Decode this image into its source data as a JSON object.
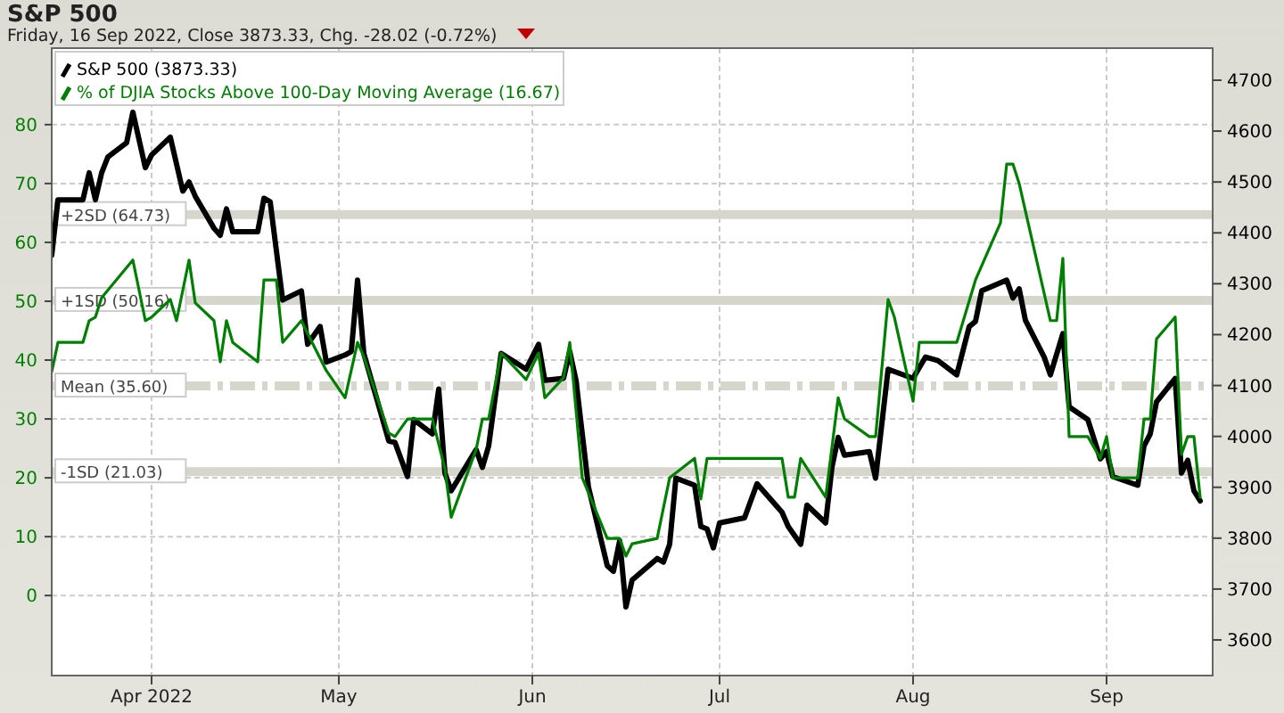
{
  "chart_data": {
    "type": "line",
    "title": "S&P 500",
    "subtitle": "Friday, 16 Sep 2022, Close 3873.33, Chg. -28.02 (-0.72%)",
    "xlim": [
      "2022-03-16",
      "2022-09-18"
    ],
    "xticks": [
      {
        "value": "2022-04-01",
        "label": "Apr 2022"
      },
      {
        "value": "2022-05-01",
        "label": "May"
      },
      {
        "value": "2022-06-01",
        "label": "Jun"
      },
      {
        "value": "2022-07-01",
        "label": "Jul"
      },
      {
        "value": "2022-08-01",
        "label": "Aug"
      },
      {
        "value": "2022-09-01",
        "label": "Sep"
      }
    ],
    "ylim": [
      -13.6,
      93
    ],
    "yticks": [
      0,
      10,
      20,
      30,
      40,
      50,
      60,
      70,
      80
    ],
    "y2lim": [
      3530,
      4763
    ],
    "y2ticks": [
      3600,
      3700,
      3800,
      3900,
      4000,
      4100,
      4200,
      4300,
      4400,
      4500,
      4600,
      4700
    ],
    "grid": true,
    "legend": "top left",
    "ref_lines": [
      {
        "axis": "y",
        "value": 64.73,
        "label": "+2SD (64.73)",
        "color": "#d6d6cc",
        "line_style": "solid"
      },
      {
        "axis": "y",
        "value": 50.16,
        "label": "+1SD (50.16)",
        "color": "#d6d6cc",
        "line_style": "solid"
      },
      {
        "axis": "y",
        "value": 35.6,
        "label": "Mean (35.60)",
        "color": "#d6d6cc",
        "line_style": "dashed"
      },
      {
        "axis": "y",
        "value": 21.03,
        "label": "-1SD (21.03)",
        "color": "#d6d6cc",
        "line_style": "solid"
      }
    ],
    "series": [
      {
        "name": "S&P 500 (3873.33)",
        "color": "#000000",
        "axis": "y2",
        "x": [
          "2022-03-16",
          "2022-03-17",
          "2022-03-21",
          "2022-03-22",
          "2022-03-23",
          "2022-03-24",
          "2022-03-25",
          "2022-03-28",
          "2022-03-29",
          "2022-03-31",
          "2022-04-01",
          "2022-04-04",
          "2022-04-06",
          "2022-04-07",
          "2022-04-08",
          "2022-04-11",
          "2022-04-12",
          "2022-04-13",
          "2022-04-14",
          "2022-04-18",
          "2022-04-19",
          "2022-04-20",
          "2022-04-22",
          "2022-04-25",
          "2022-04-26",
          "2022-04-28",
          "2022-04-29",
          "2022-05-02",
          "2022-05-03",
          "2022-05-04",
          "2022-05-05",
          "2022-05-09",
          "2022-05-10",
          "2022-05-12",
          "2022-05-13",
          "2022-05-16",
          "2022-05-17",
          "2022-05-18",
          "2022-05-19",
          "2022-05-23",
          "2022-05-24",
          "2022-05-25",
          "2022-05-27",
          "2022-05-31",
          "2022-06-02",
          "2022-06-03",
          "2022-06-06",
          "2022-06-07",
          "2022-06-08",
          "2022-06-10",
          "2022-06-13",
          "2022-06-14",
          "2022-06-15",
          "2022-06-16",
          "2022-06-17",
          "2022-06-21",
          "2022-06-22",
          "2022-06-23",
          "2022-06-24",
          "2022-06-27",
          "2022-06-28",
          "2022-06-29",
          "2022-06-30",
          "2022-07-01",
          "2022-07-05",
          "2022-07-07",
          "2022-07-11",
          "2022-07-12",
          "2022-07-14",
          "2022-07-15",
          "2022-07-18",
          "2022-07-19",
          "2022-07-20",
          "2022-07-21",
          "2022-07-25",
          "2022-07-26",
          "2022-07-28",
          "2022-08-01",
          "2022-08-03",
          "2022-08-05",
          "2022-08-08",
          "2022-08-10",
          "2022-08-11",
          "2022-08-12",
          "2022-08-16",
          "2022-08-17",
          "2022-08-18",
          "2022-08-19",
          "2022-08-22",
          "2022-08-23",
          "2022-08-25",
          "2022-08-26",
          "2022-08-29",
          "2022-08-31",
          "2022-09-01",
          "2022-09-02",
          "2022-09-06",
          "2022-09-07",
          "2022-09-08",
          "2022-09-09",
          "2022-09-12",
          "2022-09-13",
          "2022-09-14",
          "2022-09-15",
          "2022-09-16"
        ],
        "values": [
          4356,
          4465,
          4465,
          4518,
          4465,
          4518,
          4549,
          4577,
          4637,
          4528,
          4553,
          4588,
          4482,
          4500,
          4472,
          4409,
          4395,
          4447,
          4402,
          4402,
          4468,
          4461,
          4268,
          4286,
          4181,
          4216,
          4146,
          4160,
          4167,
          4307,
          4163,
          3991,
          3988,
          3921,
          4033,
          4005,
          4093,
          3928,
          3893,
          3974,
          3939,
          3981,
          4163,
          4132,
          4181,
          4110,
          4114,
          4167,
          4110,
          3900,
          3746,
          3735,
          3795,
          3665,
          3718,
          3760,
          3753,
          3788,
          3918,
          3904,
          3823,
          3818,
          3781,
          3830,
          3840,
          3907,
          3851,
          3823,
          3788,
          3865,
          3830,
          3939,
          3998,
          3963,
          3970,
          3918,
          4132,
          4114,
          4156,
          4149,
          4121,
          4216,
          4226,
          4286,
          4307,
          4272,
          4290,
          4228,
          4156,
          4121,
          4202,
          4058,
          4033,
          3956,
          3970,
          3921,
          3904,
          3981,
          4005,
          4068,
          4114,
          3928,
          3953,
          3893,
          3873.33
        ]
      },
      {
        "name": "% of DJIA Stocks Above 100-Day Moving Average (16.67)",
        "color": "#008000",
        "axis": "y",
        "x": [
          "2022-03-16",
          "2022-03-17",
          "2022-03-21",
          "2022-03-22",
          "2022-03-23",
          "2022-03-24",
          "2022-03-29",
          "2022-03-31",
          "2022-04-01",
          "2022-04-04",
          "2022-04-05",
          "2022-04-07",
          "2022-04-08",
          "2022-04-11",
          "2022-04-12",
          "2022-04-13",
          "2022-04-14",
          "2022-04-18",
          "2022-04-19",
          "2022-04-21",
          "2022-04-22",
          "2022-04-25",
          "2022-04-26",
          "2022-04-29",
          "2022-05-02",
          "2022-05-04",
          "2022-05-05",
          "2022-05-09",
          "2022-05-10",
          "2022-05-12",
          "2022-05-16",
          "2022-05-18",
          "2022-05-19",
          "2022-05-23",
          "2022-05-24",
          "2022-05-25",
          "2022-05-27",
          "2022-05-31",
          "2022-06-02",
          "2022-06-03",
          "2022-06-06",
          "2022-06-07",
          "2022-06-09",
          "2022-06-13",
          "2022-06-15",
          "2022-06-16",
          "2022-06-17",
          "2022-06-21",
          "2022-06-23",
          "2022-06-27",
          "2022-06-28",
          "2022-06-29",
          "2022-07-11",
          "2022-07-12",
          "2022-07-13",
          "2022-07-14",
          "2022-07-18",
          "2022-07-20",
          "2022-07-21",
          "2022-07-25",
          "2022-07-26",
          "2022-07-28",
          "2022-07-29",
          "2022-08-01",
          "2022-08-02",
          "2022-08-08",
          "2022-08-11",
          "2022-08-15",
          "2022-08-16",
          "2022-08-17",
          "2022-08-18",
          "2022-08-23",
          "2022-08-24",
          "2022-08-25",
          "2022-08-26",
          "2022-08-29",
          "2022-08-31",
          "2022-09-01",
          "2022-09-02",
          "2022-09-06",
          "2022-09-07",
          "2022-09-08",
          "2022-09-09",
          "2022-09-12",
          "2022-09-13",
          "2022-09-14",
          "2022-09-15",
          "2022-09-16"
        ],
        "values": [
          38,
          43,
          43,
          46.7,
          47.3,
          50.6,
          57,
          46.7,
          47.3,
          50.3,
          46.7,
          57,
          49.7,
          46.7,
          39.7,
          46.7,
          43,
          39.7,
          53.6,
          53.6,
          43,
          46.7,
          44.5,
          38.2,
          33.6,
          43,
          40.6,
          27.6,
          27,
          30,
          30,
          21.5,
          13.3,
          24.8,
          30,
          30,
          41.2,
          36.7,
          41.2,
          33.6,
          37,
          43,
          20,
          9.7,
          9.7,
          6.7,
          8.8,
          9.7,
          20,
          23.3,
          16.4,
          23.3,
          23.3,
          16.7,
          16.7,
          23.3,
          16.7,
          33.6,
          30,
          27,
          27,
          50.3,
          47.3,
          33,
          43,
          43,
          53.6,
          63.3,
          73.3,
          73.3,
          70,
          46.7,
          46.7,
          57.3,
          27,
          27,
          23.3,
          27,
          20,
          20,
          30,
          30,
          43.6,
          47.3,
          24,
          27,
          27,
          16.67
        ]
      }
    ]
  }
}
